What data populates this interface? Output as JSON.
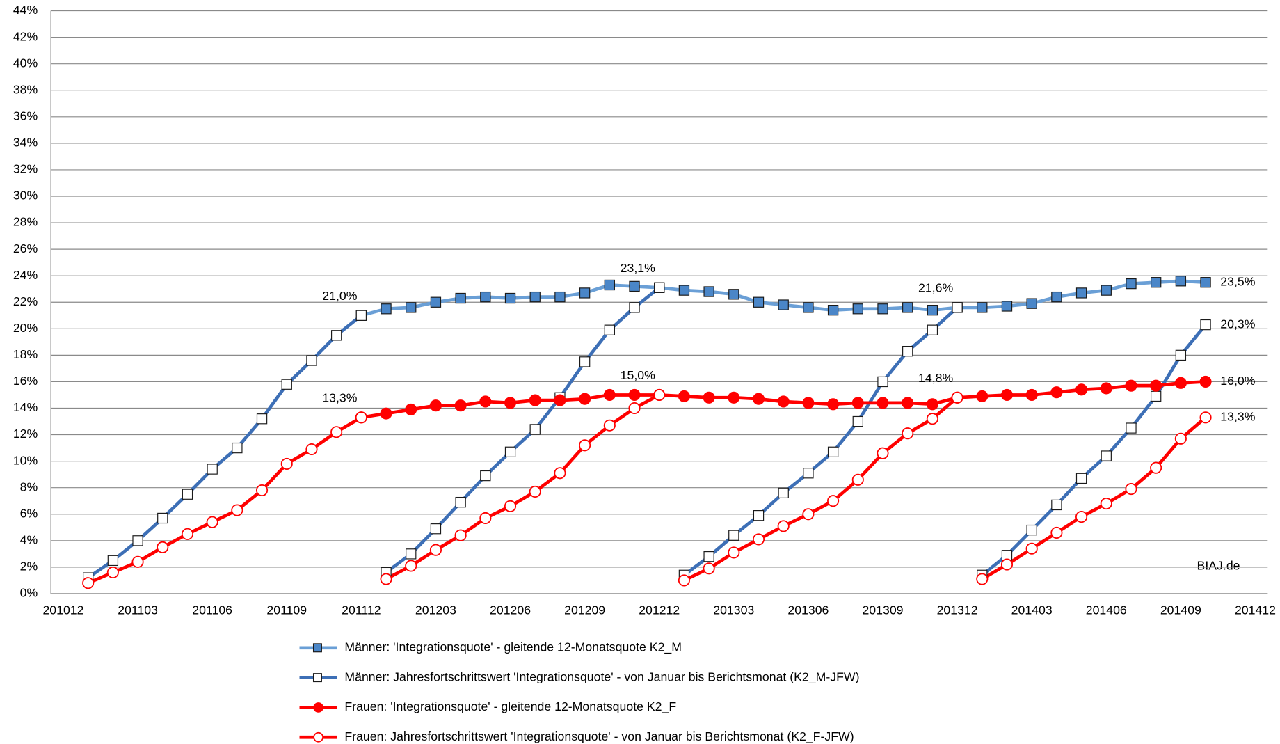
{
  "chart_data": {
    "type": "line",
    "annotation": "BIAJ.de",
    "categories": [
      "201012",
      null,
      null,
      "201103",
      null,
      null,
      "201106",
      null,
      null,
      "201109",
      null,
      null,
      "201112",
      null,
      null,
      "201203",
      null,
      null,
      "201206",
      null,
      null,
      "201209",
      null,
      null,
      "201212",
      null,
      null,
      "201303",
      null,
      null,
      "201306",
      null,
      null,
      "201309",
      null,
      null,
      "201312",
      null,
      null,
      "201403",
      null,
      null,
      "201406",
      null,
      null,
      "201409",
      null,
      null,
      "201412"
    ],
    "ylim": [
      0,
      44
    ],
    "yticks": [
      {
        "value": 0,
        "label": "0%"
      },
      {
        "value": 2,
        "label": "2%"
      },
      {
        "value": 4,
        "label": "4%"
      },
      {
        "value": 6,
        "label": "6%"
      },
      {
        "value": 8,
        "label": "8%"
      },
      {
        "value": 10,
        "label": "10%"
      },
      {
        "value": 12,
        "label": "12%"
      },
      {
        "value": 14,
        "label": "14%"
      },
      {
        "value": 16,
        "label": "16%"
      },
      {
        "value": 18,
        "label": "18%"
      },
      {
        "value": 20,
        "label": "20%"
      },
      {
        "value": 22,
        "label": "22%"
      },
      {
        "value": 24,
        "label": "24%"
      },
      {
        "value": 26,
        "label": "26%"
      },
      {
        "value": 28,
        "label": "28%"
      },
      {
        "value": 30,
        "label": "30%"
      },
      {
        "value": 32,
        "label": "32%"
      },
      {
        "value": 34,
        "label": "34%"
      },
      {
        "value": 36,
        "label": "36%"
      },
      {
        "value": 38,
        "label": "38%"
      },
      {
        "value": 40,
        "label": "40%"
      },
      {
        "value": 42,
        "label": "42%"
      },
      {
        "value": 44,
        "label": "44%"
      }
    ],
    "grid": true,
    "legend": "bottom",
    "series": [
      {
        "name": "Männer: 'Integrationsquote' - gleitende 12-Monatsquote K2_M",
        "color": "#6a9fd6",
        "marker": "square",
        "marker_fill": "#4a86c8",
        "values": [
          null,
          null,
          null,
          null,
          null,
          null,
          null,
          null,
          null,
          null,
          null,
          null,
          21.0,
          21.5,
          21.6,
          22.0,
          22.3,
          22.4,
          22.3,
          22.4,
          22.4,
          22.7,
          23.3,
          23.2,
          23.1,
          22.9,
          22.8,
          22.6,
          22.0,
          21.8,
          21.6,
          21.4,
          21.5,
          21.5,
          21.6,
          21.4,
          21.6,
          21.6,
          21.7,
          21.9,
          22.4,
          22.7,
          22.9,
          23.4,
          23.5,
          23.6,
          23.5,
          null,
          null
        ],
        "value_labels": [
          null,
          null,
          null,
          null,
          null,
          null,
          null,
          null,
          null,
          null,
          null,
          null,
          "21,0%",
          null,
          null,
          null,
          null,
          null,
          null,
          null,
          null,
          null,
          null,
          null,
          "23,1%",
          null,
          null,
          null,
          null,
          null,
          null,
          null,
          null,
          null,
          null,
          null,
          "21,6%",
          null,
          null,
          null,
          null,
          null,
          null,
          null,
          null,
          null,
          "23,5%",
          null,
          null
        ]
      },
      {
        "name": "Männer: Jahresfortschrittswert 'Integrationsquote' - von Januar bis Berichtsmonat (K2_M-JFW)",
        "color": "#3d6fb6",
        "marker": "square",
        "marker_fill": "#ffffff",
        "values": [
          null,
          1.2,
          2.5,
          4.0,
          5.7,
          7.5,
          9.4,
          11.0,
          13.2,
          15.8,
          17.6,
          19.5,
          21.0,
          1.6,
          3.0,
          4.9,
          6.9,
          8.9,
          10.7,
          12.4,
          14.8,
          17.5,
          19.9,
          21.6,
          23.1,
          1.4,
          2.8,
          4.4,
          5.9,
          7.6,
          9.1,
          10.7,
          13.0,
          16.0,
          18.3,
          19.9,
          21.6,
          1.4,
          2.9,
          4.8,
          6.7,
          8.7,
          10.4,
          12.5,
          14.9,
          18.0,
          20.3,
          null,
          null
        ],
        "value_labels": [
          null,
          null,
          null,
          null,
          null,
          null,
          null,
          null,
          null,
          null,
          null,
          null,
          null,
          null,
          null,
          null,
          null,
          null,
          null,
          null,
          null,
          null,
          null,
          null,
          null,
          null,
          null,
          null,
          null,
          null,
          null,
          null,
          null,
          null,
          null,
          null,
          null,
          null,
          null,
          null,
          null,
          null,
          null,
          null,
          null,
          null,
          "20,3%",
          null,
          null
        ]
      },
      {
        "name": "Frauen: 'Integrationsquote' - gleitende 12-Monatsquote K2_F",
        "color": "#ff0000",
        "marker": "circle",
        "marker_fill": "#ff0000",
        "values": [
          null,
          null,
          null,
          null,
          null,
          null,
          null,
          null,
          null,
          null,
          null,
          null,
          13.3,
          13.6,
          13.9,
          14.2,
          14.2,
          14.5,
          14.4,
          14.6,
          14.6,
          14.7,
          15.0,
          15.0,
          15.0,
          14.9,
          14.8,
          14.8,
          14.7,
          14.5,
          14.4,
          14.3,
          14.4,
          14.4,
          14.4,
          14.3,
          14.8,
          14.9,
          15.0,
          15.0,
          15.2,
          15.4,
          15.5,
          15.7,
          15.7,
          15.9,
          16.0,
          null,
          null
        ],
        "value_labels": [
          null,
          null,
          null,
          null,
          null,
          null,
          null,
          null,
          null,
          null,
          null,
          null,
          "13,3%",
          null,
          null,
          null,
          null,
          null,
          null,
          null,
          null,
          null,
          null,
          null,
          "15,0%",
          null,
          null,
          null,
          null,
          null,
          null,
          null,
          null,
          null,
          null,
          null,
          "14,8%",
          null,
          null,
          null,
          null,
          null,
          null,
          null,
          null,
          null,
          "16,0%",
          null,
          null
        ]
      },
      {
        "name": "Frauen: Jahresfortschrittswert 'Integrationsquote' - von Januar bis Berichtsmonat (K2_F-JFW)",
        "color": "#ff0000",
        "marker": "circle",
        "marker_fill": "#ffffff",
        "values": [
          null,
          0.8,
          1.6,
          2.4,
          3.5,
          4.5,
          5.4,
          6.3,
          7.8,
          9.8,
          10.9,
          12.2,
          13.3,
          1.1,
          2.1,
          3.3,
          4.4,
          5.7,
          6.6,
          7.7,
          9.1,
          11.2,
          12.7,
          14.0,
          15.0,
          1.0,
          1.9,
          3.1,
          4.1,
          5.1,
          6.0,
          7.0,
          8.6,
          10.6,
          12.1,
          13.2,
          14.8,
          1.1,
          2.2,
          3.4,
          4.6,
          5.8,
          6.8,
          7.9,
          9.5,
          11.7,
          13.3,
          null,
          null
        ],
        "value_labels": [
          null,
          null,
          null,
          null,
          null,
          null,
          null,
          null,
          null,
          null,
          null,
          null,
          null,
          null,
          null,
          null,
          null,
          null,
          null,
          null,
          null,
          null,
          null,
          null,
          null,
          null,
          null,
          null,
          null,
          null,
          null,
          null,
          null,
          null,
          null,
          null,
          null,
          null,
          null,
          null,
          null,
          null,
          null,
          null,
          null,
          null,
          "13,3%",
          null,
          null
        ]
      }
    ]
  }
}
